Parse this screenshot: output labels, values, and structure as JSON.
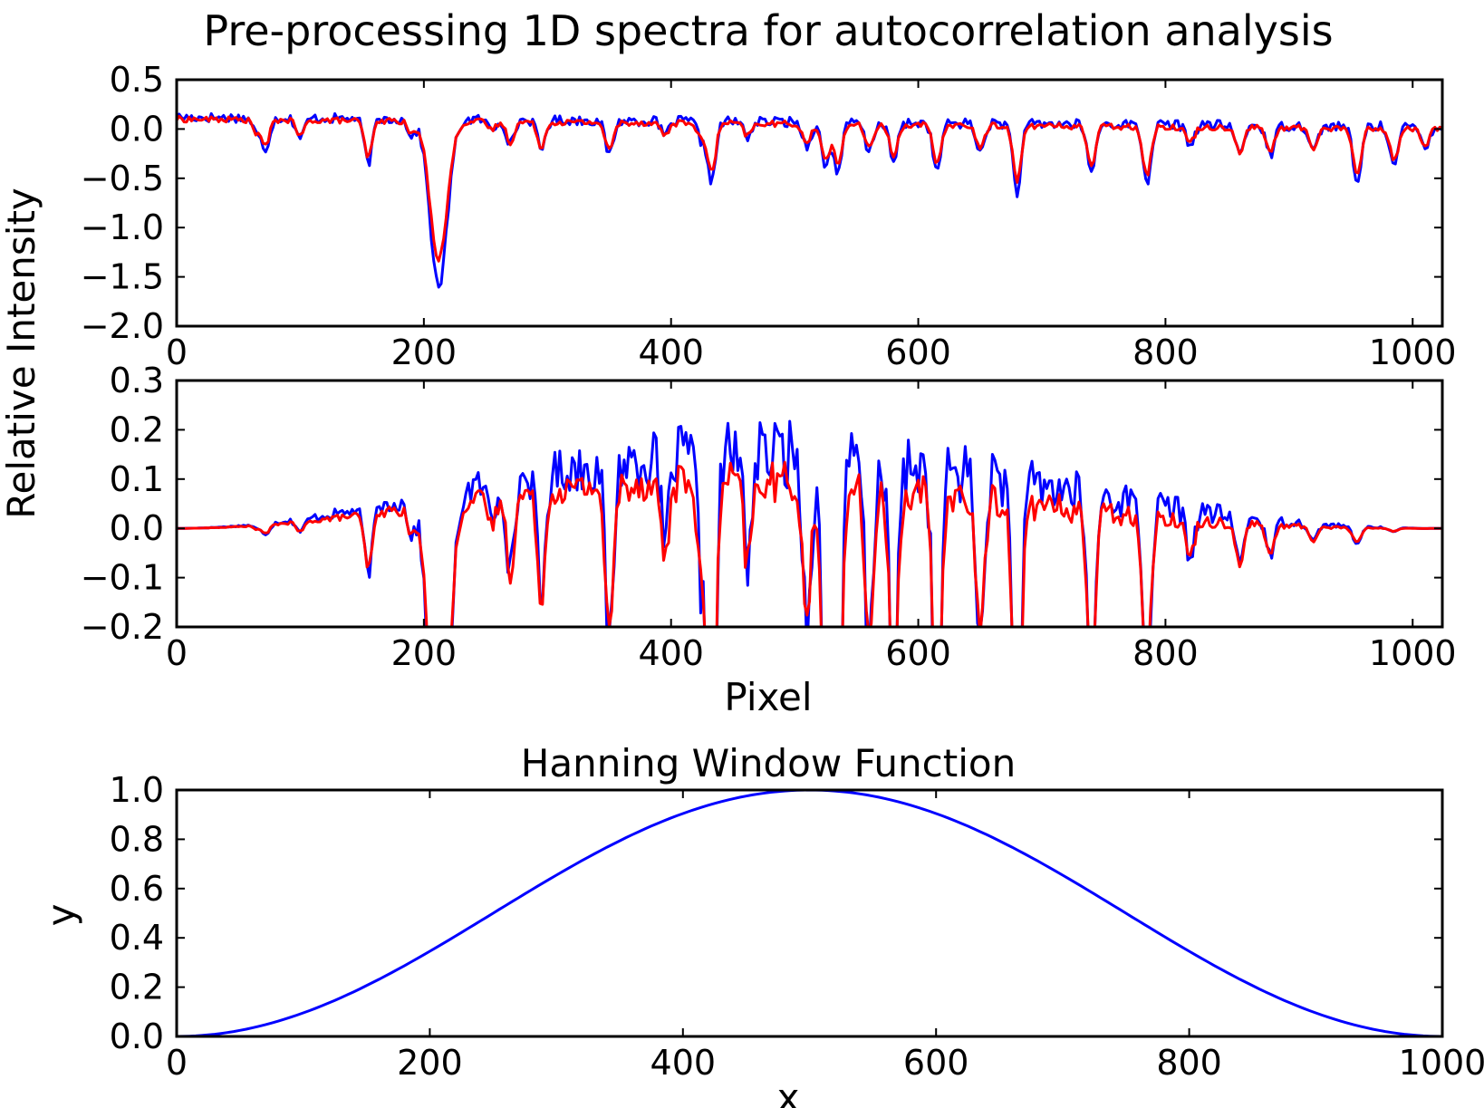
{
  "figure": {
    "title": "Pre-processing 1D spectra for autocorrelation analysis",
    "shared_ylabel": "Relative Intensity"
  },
  "chart_data": [
    {
      "type": "line",
      "xlim": [
        0,
        1024
      ],
      "ylim": [
        -2.0,
        0.5
      ],
      "xticks": [
        0,
        200,
        400,
        600,
        800,
        1000
      ],
      "yticks": [
        0.5,
        0.0,
        -0.5,
        -1.0,
        -1.5,
        -2.0
      ],
      "xtick_labels": [
        "0",
        "200",
        "400",
        "600",
        "800",
        "1000"
      ],
      "ytick_labels": [
        "0.5",
        "0.0",
        "−0.5",
        "−1.0",
        "−1.5",
        "−2.0"
      ],
      "xlabel": "",
      "grid": false,
      "series": [
        {
          "color": "#0000ff",
          "baseline": 0.12,
          "tilt": -0.2,
          "noise": 0.05,
          "dipscale": 1.0,
          "raise": 0.05
        },
        {
          "color": "#ff0000",
          "baseline": 0.1,
          "tilt": -0.2,
          "noise": 0.03,
          "dipscale": 0.82,
          "raise": 0.02
        }
      ],
      "features": [
        [
          65,
          0.15
        ],
        [
          72,
          0.3
        ],
        [
          100,
          0.2
        ],
        [
          155,
          0.45
        ],
        [
          190,
          0.15
        ],
        [
          212,
          1.7
        ],
        [
          255,
          0.1
        ],
        [
          270,
          0.25
        ],
        [
          295,
          0.3
        ],
        [
          350,
          0.35
        ],
        [
          395,
          0.15
        ],
        [
          425,
          0.2
        ],
        [
          433,
          0.6
        ],
        [
          462,
          0.15
        ],
        [
          510,
          0.25
        ],
        [
          525,
          0.45
        ],
        [
          535,
          0.5
        ],
        [
          560,
          0.3
        ],
        [
          580,
          0.4
        ],
        [
          615,
          0.5
        ],
        [
          650,
          0.3
        ],
        [
          680,
          0.7
        ],
        [
          740,
          0.5
        ],
        [
          785,
          0.6
        ],
        [
          820,
          0.2
        ],
        [
          860,
          0.3
        ],
        [
          885,
          0.3
        ],
        [
          920,
          0.25
        ],
        [
          955,
          0.6
        ],
        [
          985,
          0.4
        ],
        [
          1010,
          0.2
        ]
      ]
    },
    {
      "type": "line",
      "xlim": [
        0,
        1024
      ],
      "ylim": [
        -0.2,
        0.3
      ],
      "xticks": [
        0,
        200,
        400,
        600,
        800,
        1000
      ],
      "yticks": [
        0.3,
        0.2,
        0.1,
        0.0,
        -0.1,
        -0.2
      ],
      "xtick_labels": [
        "0",
        "200",
        "400",
        "600",
        "800",
        "1000"
      ],
      "ytick_labels": [
        "0.3",
        "0.2",
        "0.1",
        "0.0",
        "−0.1",
        "−0.2"
      ],
      "xlabel": "Pixel",
      "grid": false,
      "series": [
        {
          "color": "#0000ff",
          "baseline": 0.12,
          "tilt": -0.2,
          "noise": 0.05,
          "dipscale": 1.0,
          "raise": 0.05
        },
        {
          "color": "#ff0000",
          "baseline": 0.1,
          "tilt": -0.2,
          "noise": 0.03,
          "dipscale": 0.82,
          "raise": 0.02
        }
      ]
    },
    {
      "type": "line",
      "title": "Hanning Window Function",
      "xlim": [
        0,
        1000
      ],
      "ylim": [
        0.0,
        1.0
      ],
      "xticks": [
        0,
        200,
        400,
        600,
        800,
        1000
      ],
      "yticks": [
        1.0,
        0.8,
        0.6,
        0.4,
        0.2,
        0.0
      ],
      "xtick_labels": [
        "0",
        "200",
        "400",
        "600",
        "800",
        "1000"
      ],
      "ytick_labels": [
        "1.0",
        "0.8",
        "0.6",
        "0.4",
        "0.2",
        "0.0"
      ],
      "xlabel": "x",
      "ylabel": "y",
      "grid": false,
      "series": [
        {
          "color": "#0000ff",
          "x": [
            0,
            50,
            100,
            150,
            200,
            250,
            300,
            350,
            400,
            450,
            500,
            550,
            600,
            650,
            700,
            750,
            800,
            850,
            900,
            950,
            1000
          ],
          "y": [
            0.0,
            0.025,
            0.095,
            0.206,
            0.345,
            0.5,
            0.655,
            0.794,
            0.905,
            0.975,
            1.0,
            0.975,
            0.905,
            0.794,
            0.655,
            0.5,
            0.345,
            0.206,
            0.095,
            0.025,
            0.0
          ]
        }
      ]
    }
  ]
}
